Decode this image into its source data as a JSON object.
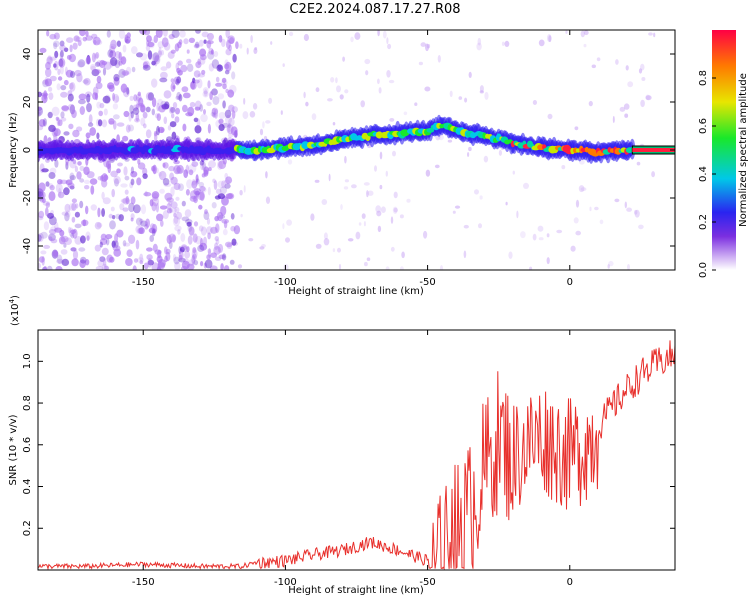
{
  "title": "C2E2.2024.087.17.27.R08",
  "chart_data": [
    {
      "type": "heatmap",
      "xlabel": "Height of straight line (km)",
      "ylabel": "Frequency (Hz)",
      "xlim": [
        -187,
        37
      ],
      "ylim": [
        -50,
        50
      ],
      "xticks": [
        -150,
        -100,
        -50,
        0
      ],
      "yticks": [
        -40,
        -20,
        0,
        20,
        40
      ],
      "colorbar": {
        "label": "Normalized spectral amplitude",
        "range": [
          0.0,
          1.0
        ],
        "ticks": [
          "0.0",
          "0.2",
          "0.4",
          "0.6",
          "0.8"
        ]
      },
      "ridge_x": [
        -187,
        -150,
        -118,
        -110,
        -100,
        -90,
        -80,
        -70,
        -60,
        -50,
        -45,
        -40,
        -30,
        -20,
        -10,
        0,
        10,
        20,
        37
      ],
      "ridge_y": [
        0,
        0,
        0,
        0,
        1,
        2,
        4,
        6,
        7,
        8,
        10,
        8,
        6,
        3,
        1,
        0,
        -1,
        0,
        0
      ],
      "colors": {
        "noise": "#7b2fe0",
        "line": "#000000"
      }
    },
    {
      "type": "line",
      "xlabel": "Height of straight line (km)",
      "ylabel": "SNR (10 * v/v)",
      "y_multiplier": "(x10",
      "y_multiplier_exp": "4",
      "y_multiplier_close": ")",
      "xlim": [
        -187,
        37
      ],
      "ylim": [
        0,
        1.15
      ],
      "xticks": [
        -150,
        -100,
        -50,
        0
      ],
      "yticks": [
        "0.2",
        "0.4",
        "0.6",
        "0.8",
        "1.0"
      ],
      "series": [
        {
          "color": "#e8302c",
          "x": [
            -187,
            -170,
            -150,
            -130,
            -115,
            -110,
            -100,
            -90,
            -80,
            -70,
            -60,
            -50,
            -45,
            -40,
            -35,
            -30,
            -25,
            -20,
            -15,
            -10,
            -5,
            0,
            5,
            10,
            15,
            20,
            25,
            30,
            37
          ],
          "y": [
            0.02,
            0.02,
            0.03,
            0.02,
            0.02,
            0.04,
            0.05,
            0.08,
            0.1,
            0.14,
            0.1,
            0.05,
            0.1,
            0.25,
            0.35,
            0.55,
            0.7,
            0.6,
            0.65,
            0.7,
            0.65,
            0.6,
            0.65,
            0.7,
            0.8,
            0.88,
            0.95,
            1.0,
            1.05
          ]
        }
      ]
    }
  ]
}
